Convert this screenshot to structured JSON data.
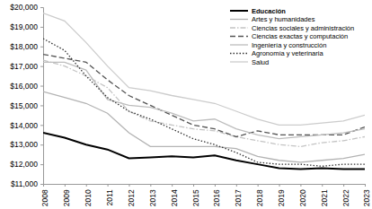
{
  "chart_data": {
    "type": "line",
    "categories": [
      "2008",
      "2009",
      "2010",
      "2011",
      "2012",
      "2013",
      "2014",
      "2015",
      "2016",
      "2017",
      "2018",
      "2019",
      "2020",
      "2021",
      "2022",
      "2023"
    ],
    "series": [
      {
        "name": "Educación",
        "color": "#000000",
        "line_style": "solid",
        "values": [
          13600,
          13350,
          13000,
          12750,
          12300,
          12350,
          12400,
          12350,
          12450,
          12200,
          12000,
          11800,
          11750,
          11800,
          11750,
          11750
        ]
      },
      {
        "name": "Artes y humanidades",
        "color": "#b3b3b3",
        "line_style": "solid",
        "values": [
          15700,
          15400,
          15100,
          14600,
          13600,
          12900,
          12900,
          12900,
          12900,
          12800,
          12400,
          12200,
          12100,
          12200,
          12300,
          12500
        ]
      },
      {
        "name": "Ciencias sociales y administración",
        "color": "#c4c4c4",
        "line_style": "dashdot",
        "values": [
          17300,
          17000,
          16500,
          15900,
          14700,
          14200,
          14000,
          13800,
          13700,
          13400,
          13200,
          13000,
          12900,
          13100,
          13200,
          13400
        ]
      },
      {
        "name": "Ciencias exactas y computación",
        "color": "#555555",
        "line_style": "dashed",
        "values": [
          17600,
          17400,
          17200,
          16300,
          15500,
          15000,
          14500,
          14000,
          13800,
          13400,
          13700,
          13500,
          13500,
          13500,
          13500,
          13900
        ]
      },
      {
        "name": "Ingeniería y construcción",
        "color": "#bdbdbd",
        "line_style": "solid",
        "values": [
          17200,
          17200,
          16800,
          15300,
          15000,
          14900,
          14600,
          14200,
          14300,
          13800,
          13500,
          13300,
          13400,
          13500,
          13600,
          13800
        ]
      },
      {
        "name": "Agronomía y veterinaria",
        "color": "#333333",
        "line_style": "dotted",
        "values": [
          18400,
          17800,
          16500,
          15400,
          14700,
          14300,
          13800,
          13300,
          13000,
          12600,
          12100,
          12000,
          12000,
          11900,
          12000,
          12000
        ]
      },
      {
        "name": "Salud",
        "color": "#cccccc",
        "line_style": "solid",
        "values": [
          19700,
          19300,
          18200,
          17000,
          15900,
          15750,
          15500,
          15300,
          15100,
          14700,
          14300,
          14000,
          14000,
          14100,
          14200,
          14500
        ]
      }
    ],
    "ylim": [
      11000,
      20000
    ],
    "yticks": [
      {
        "value": 11000,
        "label": "$11,000"
      },
      {
        "value": 12000,
        "label": "$12,000"
      },
      {
        "value": 13000,
        "label": "$13,000"
      },
      {
        "value": 14000,
        "label": "$14,000"
      },
      {
        "value": 15000,
        "label": "$15,000"
      },
      {
        "value": 16000,
        "label": "$16,000"
      },
      {
        "value": 17000,
        "label": "$17,000"
      },
      {
        "value": 18000,
        "label": "$18,000"
      },
      {
        "value": 19000,
        "label": "$19,000"
      },
      {
        "value": 20000,
        "label": "$20,000"
      }
    ],
    "grid": false,
    "legend": "top-right"
  }
}
